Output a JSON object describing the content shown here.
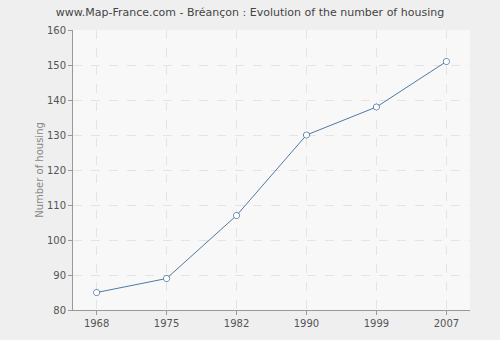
{
  "chart_data": {
    "type": "line",
    "title": "www.Map-France.com - Bréançon : Evolution of the number of housing",
    "ylabel": "Number of housing",
    "categories": [
      "1968",
      "1975",
      "1982",
      "1990",
      "1999",
      "2007"
    ],
    "values": [
      85,
      89,
      107,
      130,
      138,
      151
    ],
    "color": "#4f7aa5",
    "marker": "circle",
    "ylim": [
      80,
      160
    ],
    "yticks": [
      80,
      90,
      100,
      110,
      120,
      130,
      140,
      150,
      160
    ],
    "grid": true
  }
}
